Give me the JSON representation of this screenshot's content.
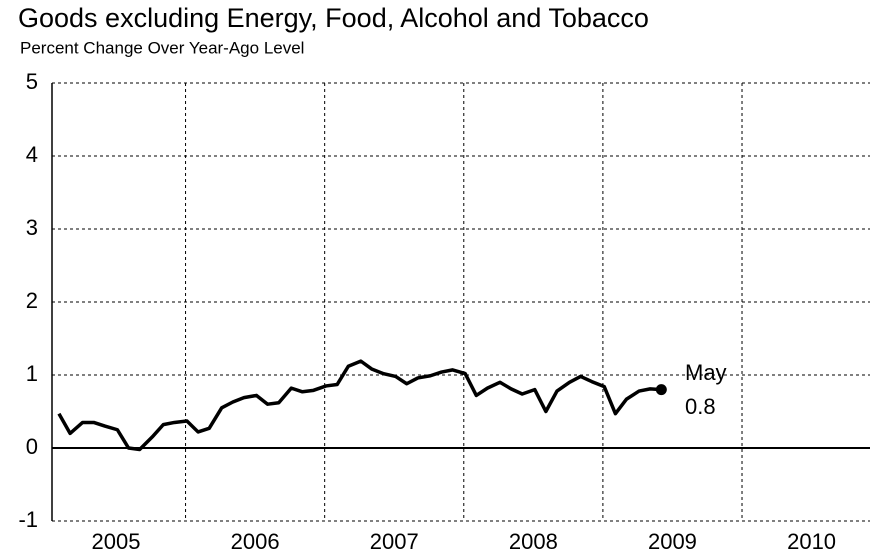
{
  "chart_data": {
    "type": "line",
    "title": "Goods excluding Energy, Food, Alcohol and Tobacco",
    "subtitle": "Percent Change Over Year-Ago Level",
    "x": [
      2005.09,
      2005.17,
      2005.26,
      2005.34,
      2005.42,
      2005.51,
      2005.59,
      2005.67,
      2005.76,
      2005.84,
      2005.92,
      2006.01,
      2006.09,
      2006.17,
      2006.26,
      2006.34,
      2006.42,
      2006.51,
      2006.59,
      2006.67,
      2006.76,
      2006.84,
      2006.92,
      2007.01,
      2007.09,
      2007.17,
      2007.26,
      2007.34,
      2007.42,
      2007.51,
      2007.59,
      2007.67,
      2007.76,
      2007.84,
      2007.92,
      2008.01,
      2008.09,
      2008.17,
      2008.26,
      2008.34,
      2008.42,
      2008.51,
      2008.59,
      2008.67,
      2008.76,
      2008.84,
      2008.92,
      2009.01,
      2009.09,
      2009.17,
      2009.26,
      2009.34,
      2009.42
    ],
    "series": [
      {
        "name": "Goods excluding Energy, Food, Alcohol and Tobacco",
        "color": "#000000",
        "values": [
          0.47,
          0.2,
          0.35,
          0.35,
          0.3,
          0.25,
          0.0,
          -0.02,
          0.15,
          0.32,
          0.35,
          0.37,
          0.22,
          0.27,
          0.55,
          0.63,
          0.69,
          0.72,
          0.6,
          0.62,
          0.82,
          0.77,
          0.79,
          0.85,
          0.87,
          1.12,
          1.19,
          1.08,
          1.02,
          0.98,
          0.88,
          0.96,
          0.99,
          1.04,
          1.07,
          1.02,
          0.72,
          0.82,
          0.9,
          0.81,
          0.74,
          0.8,
          0.5,
          0.78,
          0.9,
          0.98,
          0.91,
          0.84,
          0.47,
          0.67,
          0.78,
          0.81,
          0.8
        ]
      }
    ],
    "annotations": [
      "May",
      "0.8"
    ],
    "xlim": [
      2005.04,
      2010.92
    ],
    "xticks": [
      2006,
      2007,
      2008,
      2009,
      2010
    ],
    "xtick_labels": [
      {
        "value": 2005.5,
        "label": "2005"
      },
      {
        "value": 2006.5,
        "label": "2006"
      },
      {
        "value": 2007.5,
        "label": "2007"
      },
      {
        "value": 2008.5,
        "label": "2008"
      },
      {
        "value": 2009.5,
        "label": "2009"
      },
      {
        "value": 2010.5,
        "label": "2010"
      }
    ],
    "ylim": [
      -1,
      5
    ],
    "yticks": [
      -1,
      0,
      1,
      2,
      3,
      4,
      5
    ],
    "grid": true
  }
}
